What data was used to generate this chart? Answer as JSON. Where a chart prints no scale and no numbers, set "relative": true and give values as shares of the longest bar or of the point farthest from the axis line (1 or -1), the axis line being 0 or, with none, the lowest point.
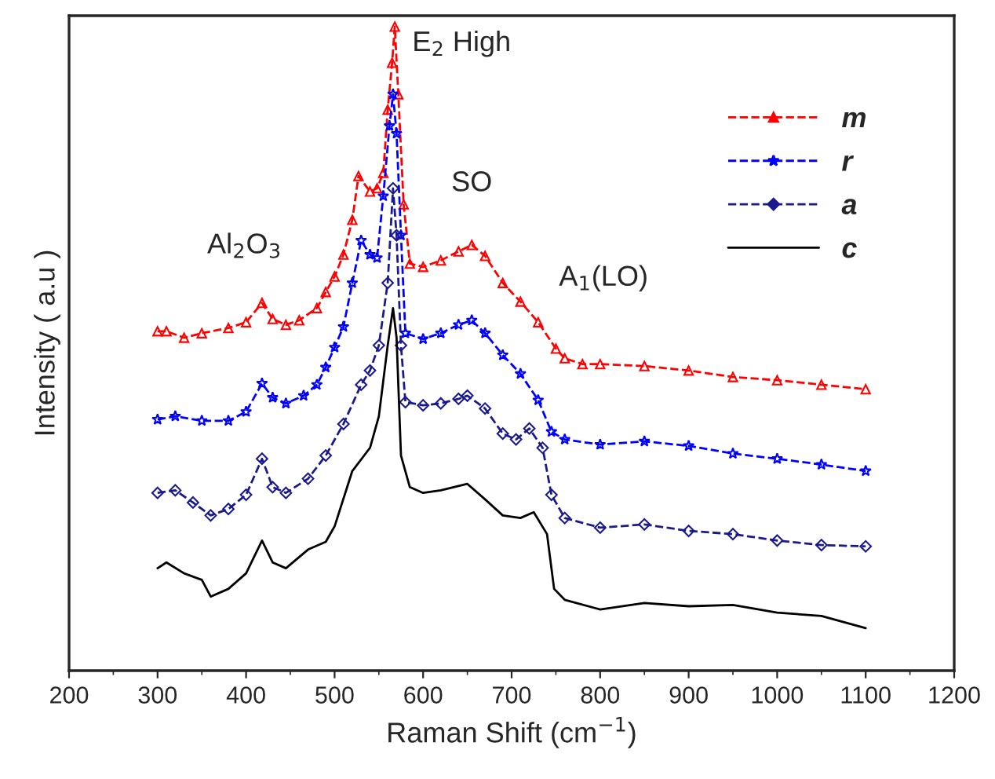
{
  "chart_data": {
    "type": "line",
    "relative": true,
    "xlabel": "Raman Shift (cm$^{−1}$)",
    "ylabel": "Intensity ( a.u )",
    "xlim": [
      200,
      1200
    ],
    "xticks": [
      200,
      300,
      400,
      500,
      600,
      700,
      800,
      900,
      1000,
      1100,
      1200
    ],
    "grid": false,
    "legend": "top right",
    "tick_labels": "x",
    "annotations": [
      {
        "text": "Al$_{2}$O$_{3}$",
        "x": 418,
        "y": 0.571
      },
      {
        "text": "E$_{2}$ High",
        "x": 568,
        "y": 1
      },
      {
        "text": "SO",
        "x": 655,
        "y": 0.661
      },
      {
        "text": "A$_{1}$(LO)",
        "x": 730,
        "y": 0.541
      }
    ],
    "series": [
      {
        "name": "m",
        "color": "#ff0000",
        "marker": "triangle",
        "line_style": "dashed",
        "x": [
          300,
          310,
          330,
          350,
          380,
          400,
          418,
          430,
          445,
          460,
          480,
          490,
          500,
          510,
          520,
          527,
          540,
          548,
          555,
          560,
          565,
          568,
          572,
          578,
          585,
          600,
          620,
          640,
          655,
          670,
          690,
          710,
          730,
          750,
          760,
          780,
          800,
          850,
          900,
          950,
          1000,
          1050,
          1100
        ],
        "values": [
          0.527,
          0.527,
          0.517,
          0.524,
          0.532,
          0.541,
          0.571,
          0.546,
          0.537,
          0.544,
          0.563,
          0.588,
          0.612,
          0.646,
          0.7,
          0.768,
          0.744,
          0.749,
          0.773,
          0.871,
          0.944,
          1,
          0.895,
          0.724,
          0.632,
          0.627,
          0.637,
          0.651,
          0.661,
          0.644,
          0.602,
          0.573,
          0.541,
          0.5,
          0.485,
          0.476,
          0.476,
          0.473,
          0.466,
          0.456,
          0.451,
          0.444,
          0.437
        ]
      },
      {
        "name": "r",
        "color": "#0000ff",
        "marker": "star",
        "line_style": "dashed",
        "x": [
          300,
          320,
          350,
          380,
          400,
          418,
          430,
          445,
          465,
          480,
          490,
          500,
          510,
          520,
          530,
          540,
          548,
          555,
          562,
          566,
          570,
          575,
          580,
          600,
          620,
          640,
          655,
          670,
          690,
          710,
          730,
          745,
          760,
          800,
          850,
          900,
          950,
          1000,
          1050,
          1100
        ],
        "values": [
          0.39,
          0.395,
          0.388,
          0.388,
          0.402,
          0.446,
          0.424,
          0.415,
          0.427,
          0.444,
          0.471,
          0.502,
          0.534,
          0.602,
          0.668,
          0.646,
          0.641,
          0.737,
          0.846,
          0.895,
          0.834,
          0.676,
          0.524,
          0.515,
          0.524,
          0.537,
          0.544,
          0.524,
          0.49,
          0.461,
          0.42,
          0.371,
          0.359,
          0.351,
          0.356,
          0.349,
          0.337,
          0.329,
          0.32,
          0.31
        ]
      },
      {
        "name": "a",
        "color": "#1a1a8c",
        "marker": "diamond",
        "line_style": "dashed",
        "x": [
          300,
          320,
          340,
          360,
          380,
          400,
          418,
          430,
          445,
          470,
          490,
          510,
          530,
          540,
          550,
          560,
          566,
          570,
          575,
          580,
          600,
          620,
          640,
          650,
          670,
          690,
          705,
          720,
          735,
          745,
          760,
          800,
          850,
          900,
          950,
          1000,
          1050,
          1100
        ],
        "values": [
          0.276,
          0.28,
          0.261,
          0.241,
          0.251,
          0.273,
          0.329,
          0.285,
          0.276,
          0.298,
          0.334,
          0.383,
          0.444,
          0.466,
          0.505,
          0.602,
          0.749,
          0.676,
          0.505,
          0.417,
          0.412,
          0.415,
          0.422,
          0.427,
          0.407,
          0.368,
          0.359,
          0.376,
          0.346,
          0.273,
          0.237,
          0.222,
          0.227,
          0.217,
          0.212,
          0.202,
          0.195,
          0.193
        ]
      },
      {
        "name": "c",
        "color": "#000000",
        "marker": "none",
        "line_style": "solid",
        "x": [
          300,
          310,
          330,
          350,
          360,
          380,
          400,
          418,
          430,
          445,
          470,
          490,
          500,
          520,
          540,
          550,
          560,
          566,
          570,
          575,
          585,
          600,
          620,
          650,
          670,
          690,
          710,
          725,
          740,
          748,
          760,
          800,
          850,
          900,
          950,
          1000,
          1050,
          1100
        ],
        "values": [
          0.159,
          0.168,
          0.151,
          0.141,
          0.115,
          0.127,
          0.151,
          0.202,
          0.168,
          0.159,
          0.188,
          0.2,
          0.224,
          0.31,
          0.346,
          0.395,
          0.505,
          0.563,
          0.517,
          0.334,
          0.285,
          0.276,
          0.28,
          0.29,
          0.266,
          0.241,
          0.237,
          0.246,
          0.212,
          0.127,
          0.11,
          0.095,
          0.105,
          0.1,
          0.102,
          0.09,
          0.085,
          0.066
        ]
      }
    ]
  }
}
